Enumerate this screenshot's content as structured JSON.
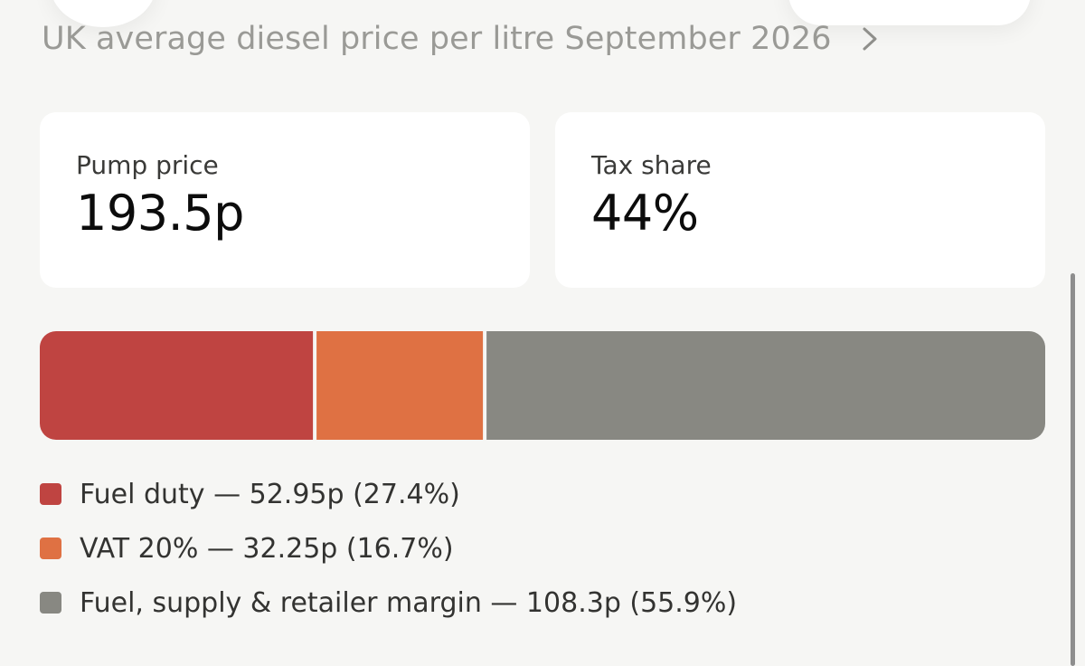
{
  "header": {
    "title": "UK average diesel price per litre September 2026",
    "chevron_icon": "chevron-right-icon"
  },
  "stats": {
    "pump_price": {
      "label": "Pump price",
      "value": "193.5p"
    },
    "tax_share": {
      "label": "Tax share",
      "value": "44%"
    }
  },
  "legend": {
    "items": [
      {
        "text": "Fuel duty — 52.95p (27.4%)",
        "color": "#bf4441"
      },
      {
        "text": "VAT 20% — 32.25p (16.7%)",
        "color": "#df7143"
      },
      {
        "text": "Fuel, supply & retailer margin — 108.3p (55.9%)",
        "color": "#888882"
      }
    ]
  },
  "chart_data": {
    "type": "bar",
    "stacked": true,
    "orientation": "horizontal",
    "unit": "p",
    "total": 193.5,
    "series": [
      {
        "name": "Fuel duty",
        "value": 52.95,
        "percent": 27.4,
        "color": "#bf4441"
      },
      {
        "name": "VAT 20%",
        "value": 32.25,
        "percent": 16.7,
        "color": "#df7143"
      },
      {
        "name": "Fuel, supply & retailer margin",
        "value": 108.3,
        "percent": 55.9,
        "color": "#888882"
      }
    ]
  }
}
